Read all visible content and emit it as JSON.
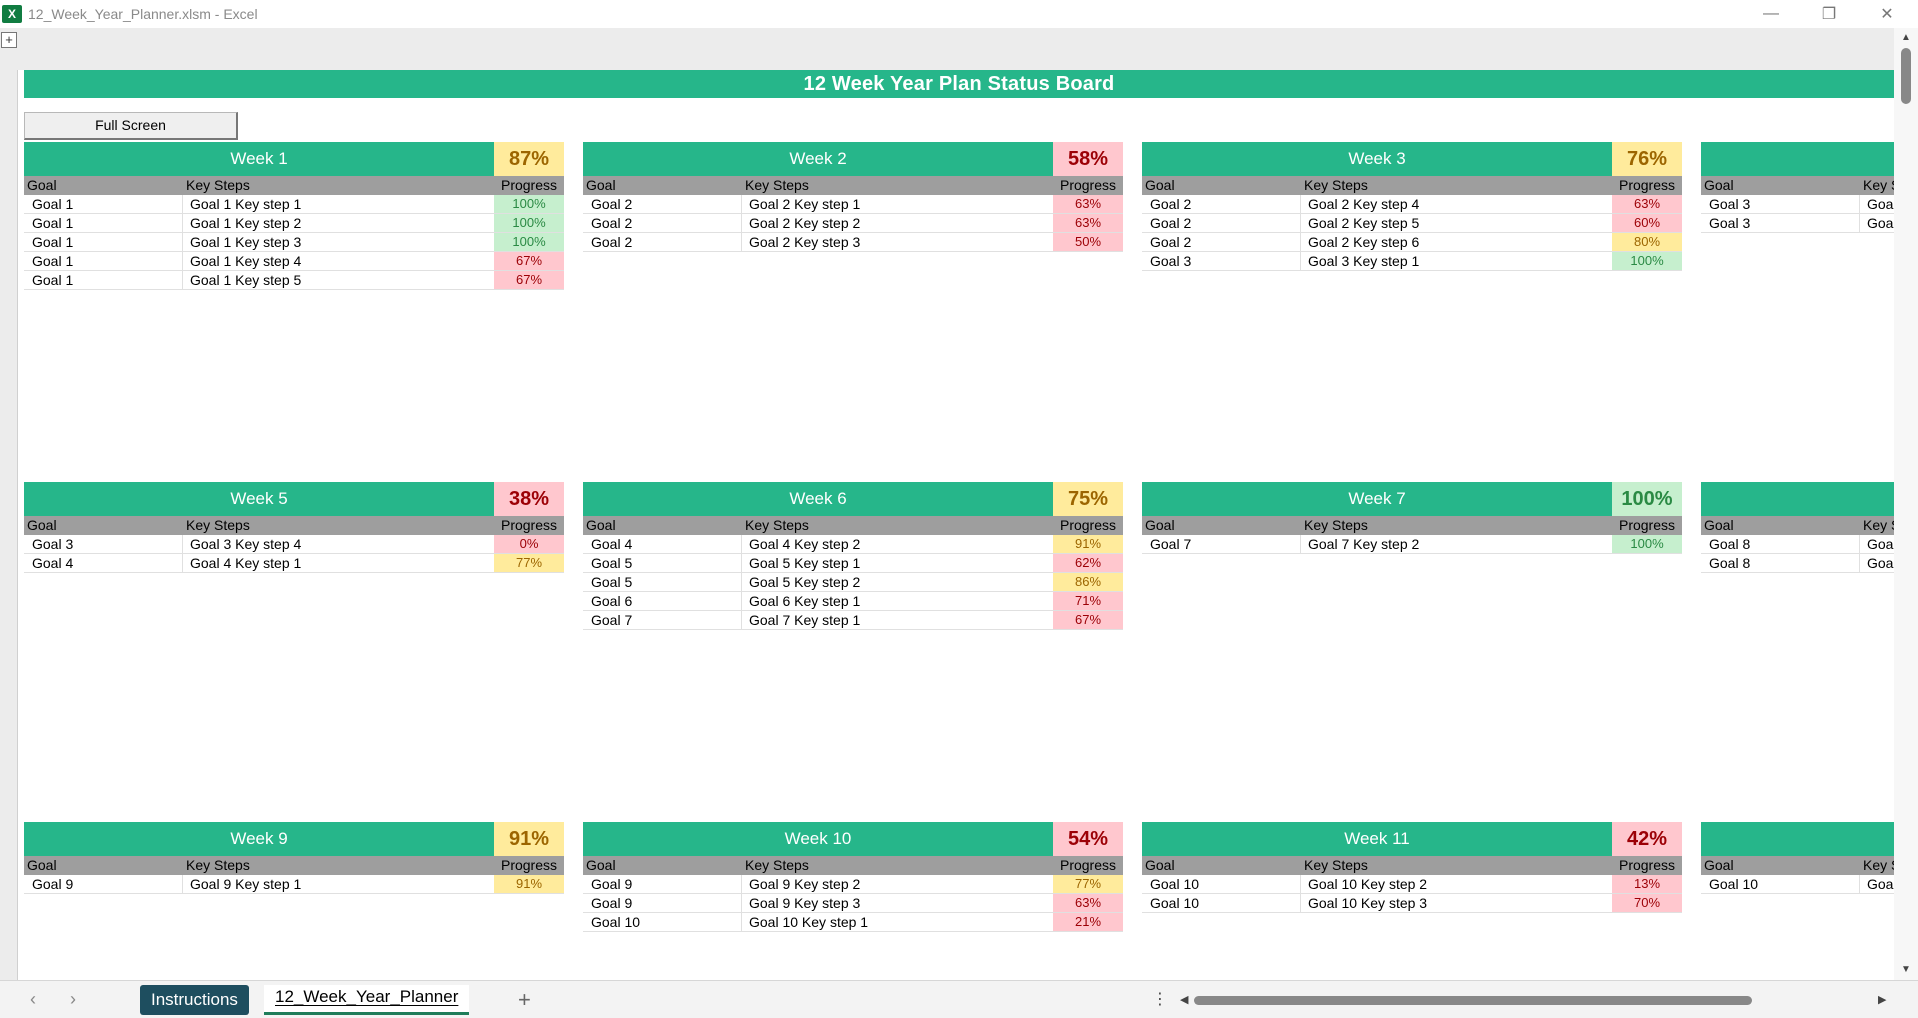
{
  "window": {
    "title": "12_Week_Year_Planner.xlsm - Excel",
    "app_icon": "X",
    "minimize": "—",
    "restore": "❐",
    "close": "✕"
  },
  "ribbon": {
    "expand_symbol": "+"
  },
  "sheet": {
    "banner": "12 Week Year Plan Status Board",
    "full_screen_button": "Full Screen",
    "columns": {
      "goal": "Goal",
      "steps": "Key Steps",
      "progress": "Progress"
    }
  },
  "colors": {
    "accent_green": "#26b68a",
    "good_bg": "#c6efce",
    "good_fg": "#2a8a44",
    "warn_bg": "#ffeb9c",
    "warn_fg": "#9c6500",
    "bad_bg": "#ffc7ce",
    "bad_fg": "#9c0006"
  },
  "weeks": [
    {
      "title": "Week 1",
      "pct": "87%",
      "status": "warn",
      "rows": [
        {
          "goal": "Goal 1",
          "step": "Goal 1 Key step 1",
          "progress": "100%",
          "status": "good"
        },
        {
          "goal": "Goal 1",
          "step": "Goal 1 Key step 2",
          "progress": "100%",
          "status": "good"
        },
        {
          "goal": "Goal 1",
          "step": "Goal 1 Key step 3",
          "progress": "100%",
          "status": "good"
        },
        {
          "goal": "Goal 1",
          "step": "Goal 1 Key step 4",
          "progress": "67%",
          "status": "bad"
        },
        {
          "goal": "Goal 1",
          "step": "Goal 1 Key step 5",
          "progress": "67%",
          "status": "bad"
        }
      ]
    },
    {
      "title": "Week 2",
      "pct": "58%",
      "status": "bad",
      "rows": [
        {
          "goal": "Goal 2",
          "step": "Goal 2 Key step 1",
          "progress": "63%",
          "status": "bad"
        },
        {
          "goal": "Goal 2",
          "step": "Goal 2 Key step 2",
          "progress": "63%",
          "status": "bad"
        },
        {
          "goal": "Goal 2",
          "step": "Goal 2 Key step 3",
          "progress": "50%",
          "status": "bad"
        }
      ]
    },
    {
      "title": "Week 3",
      "pct": "76%",
      "status": "warn",
      "rows": [
        {
          "goal": "Goal 2",
          "step": "Goal 2 Key step 4",
          "progress": "63%",
          "status": "bad"
        },
        {
          "goal": "Goal 2",
          "step": "Goal 2 Key step 5",
          "progress": "60%",
          "status": "bad"
        },
        {
          "goal": "Goal 2",
          "step": "Goal 2 Key step 6",
          "progress": "80%",
          "status": "warn"
        },
        {
          "goal": "Goal 3",
          "step": "Goal 3 Key step 1",
          "progress": "100%",
          "status": "good"
        }
      ]
    },
    {
      "title": "",
      "pct": "",
      "status": "none",
      "rows": [
        {
          "goal": "Goal 3",
          "step": "Goa",
          "progress": "",
          "status": "none"
        },
        {
          "goal": "Goal 3",
          "step": "Goa",
          "progress": "",
          "status": "none"
        }
      ]
    },
    {
      "title": "Week 5",
      "pct": "38%",
      "status": "bad",
      "rows": [
        {
          "goal": "Goal 3",
          "step": "Goal 3 Key step 4",
          "progress": "0%",
          "status": "bad"
        },
        {
          "goal": "Goal 4",
          "step": "Goal 4 Key step 1",
          "progress": "77%",
          "status": "warn"
        }
      ]
    },
    {
      "title": "Week 6",
      "pct": "75%",
      "status": "warn",
      "rows": [
        {
          "goal": "Goal 4",
          "step": "Goal 4 Key step 2",
          "progress": "91%",
          "status": "warn"
        },
        {
          "goal": "Goal 5",
          "step": "Goal 5 Key step 1",
          "progress": "62%",
          "status": "bad"
        },
        {
          "goal": "Goal 5",
          "step": "Goal 5 Key step 2",
          "progress": "86%",
          "status": "warn"
        },
        {
          "goal": "Goal 6",
          "step": "Goal 6 Key step 1",
          "progress": "71%",
          "status": "bad"
        },
        {
          "goal": "Goal 7",
          "step": "Goal 7 Key step 1",
          "progress": "67%",
          "status": "bad"
        }
      ]
    },
    {
      "title": "Week 7",
      "pct": "100%",
      "status": "good",
      "rows": [
        {
          "goal": "Goal 7",
          "step": "Goal 7 Key step 2",
          "progress": "100%",
          "status": "good"
        }
      ]
    },
    {
      "title": "",
      "pct": "",
      "status": "none",
      "rows": [
        {
          "goal": "Goal 8",
          "step": "Goa",
          "progress": "",
          "status": "none"
        },
        {
          "goal": "Goal 8",
          "step": "Goa",
          "progress": "",
          "status": "none"
        }
      ]
    },
    {
      "title": "Week 9",
      "pct": "91%",
      "status": "warn",
      "rows": [
        {
          "goal": "Goal 9",
          "step": "Goal 9 Key step 1",
          "progress": "91%",
          "status": "warn"
        }
      ]
    },
    {
      "title": "Week 10",
      "pct": "54%",
      "status": "bad",
      "rows": [
        {
          "goal": "Goal 9",
          "step": "Goal 9 Key step 2",
          "progress": "77%",
          "status": "warn"
        },
        {
          "goal": "Goal 9",
          "step": "Goal 9 Key step 3",
          "progress": "63%",
          "status": "bad"
        },
        {
          "goal": "Goal 10",
          "step": "Goal 10 Key step 1",
          "progress": "21%",
          "status": "bad"
        }
      ]
    },
    {
      "title": "Week 11",
      "pct": "42%",
      "status": "bad",
      "rows": [
        {
          "goal": "Goal 10",
          "step": "Goal 10 Key step 2",
          "progress": "13%",
          "status": "bad"
        },
        {
          "goal": "Goal 10",
          "step": "Goal 10 Key step 3",
          "progress": "70%",
          "status": "bad"
        }
      ]
    },
    {
      "title": "",
      "pct": "",
      "status": "none",
      "rows": [
        {
          "goal": "Goal 10",
          "step": "Goa",
          "progress": "",
          "status": "none"
        }
      ]
    }
  ],
  "tabs": {
    "items": [
      "Instructions",
      "12_Week_Year_Planner"
    ],
    "active": "12_Week_Year_Planner",
    "add_symbol": "+",
    "prev_arrow": "‹",
    "next_arrow": "›",
    "more_symbol": "⋮"
  }
}
